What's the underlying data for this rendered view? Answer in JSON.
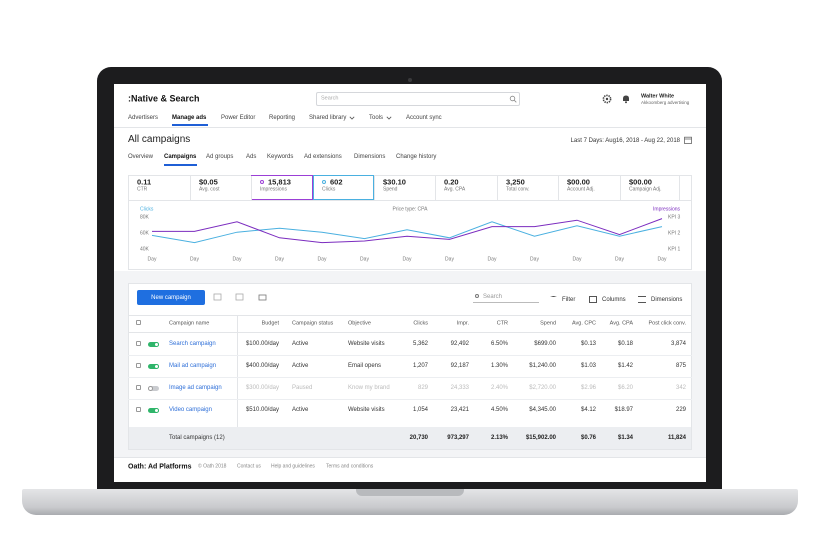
{
  "header": {
    "logo": ":Native & Search",
    "search_placeholder": "Search",
    "user_name": "Walter White",
    "user_org": "Akkoomberg advertising"
  },
  "nav": [
    "Advertisers",
    "Manage ads",
    "Power Editor",
    "Reporting",
    "Shared library",
    "Tools",
    "Account sync"
  ],
  "page": {
    "title": "All campaigns",
    "date_range": "Last 7 Days: Aug16, 2018 - Aug 22, 2018"
  },
  "tabs": [
    "Overview",
    "Campaigns",
    "Ad groups",
    "Ads",
    "Keywords",
    "Ad extensions",
    "Dimensions",
    "Change history"
  ],
  "kpis": [
    {
      "value": "0.11",
      "label": "CTR"
    },
    {
      "value": "$0.05",
      "label": "Avg. cost"
    },
    {
      "value": "15,813",
      "label": "Impressions"
    },
    {
      "value": "602",
      "label": "Clicks"
    },
    {
      "value": "$30.10",
      "label": "Spend"
    },
    {
      "value": "0.20",
      "label": "Avg. CPA"
    },
    {
      "value": "3,250",
      "label": "Total conv."
    },
    {
      "value": "$00.00",
      "label": "Account Adj."
    },
    {
      "value": "$00.00",
      "label": "Campaign Adj."
    }
  ],
  "chart": {
    "type": "line",
    "title": "Price type: CPA",
    "categories": [
      "Day",
      "Day",
      "Day",
      "Day",
      "Day",
      "Day",
      "Day",
      "Day",
      "Day",
      "Day",
      "Day",
      "Day",
      "Day"
    ],
    "series": [
      {
        "name": "Clicks",
        "color": "#4ab0e0",
        "values": [
          57000,
          48000,
          61000,
          66000,
          61000,
          53000,
          64000,
          54000,
          74000,
          56000,
          69000,
          56000,
          68000
        ]
      },
      {
        "name": "Impressions",
        "color": "#7b2cbf",
        "axis": "y2",
        "values": [
          2.1,
          2.1,
          2.7,
          1.7,
          1.4,
          1.5,
          1.8,
          1.6,
          2.4,
          2.4,
          2.8,
          1.9,
          2.9
        ]
      }
    ],
    "ylim": [
      40000,
      80000
    ],
    "yticks": [
      {
        "value": 80000,
        "label": "80K"
      },
      {
        "value": 60000,
        "label": "60K"
      },
      {
        "value": 40000,
        "label": "40K"
      }
    ],
    "y2lim": [
      1,
      3
    ],
    "y2ticks": [
      {
        "value": 3,
        "label": "KPI 3"
      },
      {
        "value": 2,
        "label": "KPI 2"
      },
      {
        "value": 1,
        "label": "KPI 1"
      }
    ],
    "grid": false
  },
  "toolbar": {
    "new_campaign": "New campaign",
    "search": "Search",
    "filter": "Filter",
    "columns": "Columns",
    "dimensions": "Dimensions"
  },
  "table": {
    "headers": [
      "Campaign name",
      "Budget",
      "Campaign status",
      "Objective",
      "Clicks",
      "Impr.",
      "CTR",
      "Spend",
      "Avg. CPC",
      "Avg. CPA",
      "Post click conv."
    ],
    "rows": [
      {
        "enabled": true,
        "cells": [
          "Search campaign",
          "$100.00/day",
          "Active",
          "Website visits",
          "5,362",
          "92,492",
          "6.50%",
          "$699.00",
          "$0.13",
          "$0.18",
          "3,874"
        ]
      },
      {
        "enabled": true,
        "cells": [
          "Mail ad campaign",
          "$400.00/day",
          "Active",
          "Email opens",
          "1,207",
          "92,187",
          "1.30%",
          "$1,240.00",
          "$1.03",
          "$1.42",
          "875"
        ]
      },
      {
        "enabled": false,
        "cells": [
          "Image ad campaign",
          "$300.00/day",
          "Paused",
          "Know my brand",
          "829",
          "24,333",
          "2.40%",
          "$2,720.00",
          "$2.96",
          "$6.20",
          "342"
        ]
      },
      {
        "enabled": true,
        "cells": [
          "Video campaign",
          "$510.00/day",
          "Active",
          "Website visits",
          "1,054",
          "23,421",
          "4.50%",
          "$4,345.00",
          "$4.12",
          "$18.97",
          "229"
        ]
      }
    ],
    "total": {
      "label": "Total campaigns (12)",
      "cells": [
        "20,730",
        "973,297",
        "2.13%",
        "$15,902.00",
        "$0.76",
        "$1.34",
        "11,824"
      ]
    }
  },
  "footer": {
    "brand": "Oath: Ad Platforms",
    "links": [
      "© Oath 2018",
      "Contact us",
      "Help and guidelines",
      "Terms and conditions"
    ]
  }
}
